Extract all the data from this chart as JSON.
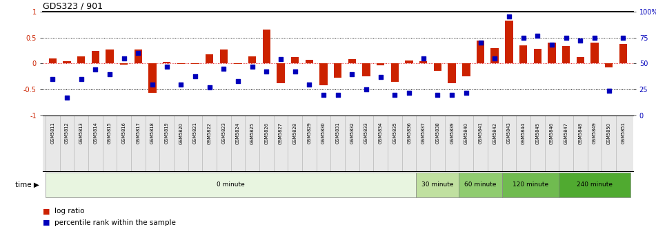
{
  "title": "GDS323 / 901",
  "samples": [
    "GSM5811",
    "GSM5812",
    "GSM5813",
    "GSM5814",
    "GSM5815",
    "GSM5816",
    "GSM5817",
    "GSM5818",
    "GSM5819",
    "GSM5820",
    "GSM5821",
    "GSM5822",
    "GSM5823",
    "GSM5824",
    "GSM5825",
    "GSM5826",
    "GSM5827",
    "GSM5828",
    "GSM5829",
    "GSM5830",
    "GSM5831",
    "GSM5832",
    "GSM5833",
    "GSM5834",
    "GSM5835",
    "GSM5836",
    "GSM5837",
    "GSM5838",
    "GSM5839",
    "GSM5840",
    "GSM5841",
    "GSM5842",
    "GSM5843",
    "GSM5844",
    "GSM5845",
    "GSM5846",
    "GSM5847",
    "GSM5848",
    "GSM5849",
    "GSM5850",
    "GSM5851"
  ],
  "log_ratio": [
    0.1,
    0.05,
    0.14,
    0.25,
    0.27,
    -0.02,
    0.27,
    -0.57,
    0.03,
    -0.01,
    -0.01,
    0.18,
    0.27,
    -0.01,
    0.14,
    0.65,
    -0.38,
    0.12,
    0.07,
    -0.42,
    -0.27,
    0.08,
    -0.25,
    -0.04,
    -0.35,
    0.06,
    0.05,
    -0.14,
    -0.38,
    -0.25,
    0.44,
    0.3,
    0.83,
    0.35,
    0.28,
    0.4,
    0.33,
    0.12,
    0.4,
    -0.08,
    0.38
  ],
  "percentile": [
    35,
    17,
    35,
    44,
    40,
    55,
    60,
    30,
    47,
    30,
    38,
    27,
    45,
    33,
    47,
    42,
    54,
    42,
    30,
    20,
    20,
    40,
    25,
    37,
    20,
    22,
    55,
    20,
    20,
    22,
    70,
    55,
    95,
    75,
    77,
    68,
    75,
    72,
    75,
    24,
    75
  ],
  "time_groups": [
    {
      "label": "0 minute",
      "start": 0,
      "end": 26,
      "color": "#e8f5e0"
    },
    {
      "label": "30 minute",
      "start": 26,
      "end": 29,
      "color": "#c0e0a0"
    },
    {
      "label": "60 minute",
      "start": 29,
      "end": 32,
      "color": "#90cc70"
    },
    {
      "label": "120 minute",
      "start": 32,
      "end": 36,
      "color": "#70bb50"
    },
    {
      "label": "240 minute",
      "start": 36,
      "end": 41,
      "color": "#50aa30"
    }
  ],
  "bar_color": "#cc2200",
  "dot_color": "#0000bb",
  "ylim": [
    -1,
    1
  ],
  "left_yticks": [
    -1,
    -0.5,
    0,
    0.5,
    1
  ],
  "left_ylabels": [
    "-1",
    "-0.5",
    "0",
    "0.5",
    "1"
  ],
  "right_yticks": [
    0,
    25,
    50,
    75,
    100
  ],
  "right_ylabels": [
    "0",
    "25",
    "50",
    "75",
    "100%"
  ],
  "hlines": [
    -0.5,
    0.0,
    0.5
  ],
  "legend_items": [
    {
      "color": "#cc2200",
      "label": "log ratio"
    },
    {
      "color": "#0000bb",
      "label": "percentile rank within the sample"
    }
  ]
}
